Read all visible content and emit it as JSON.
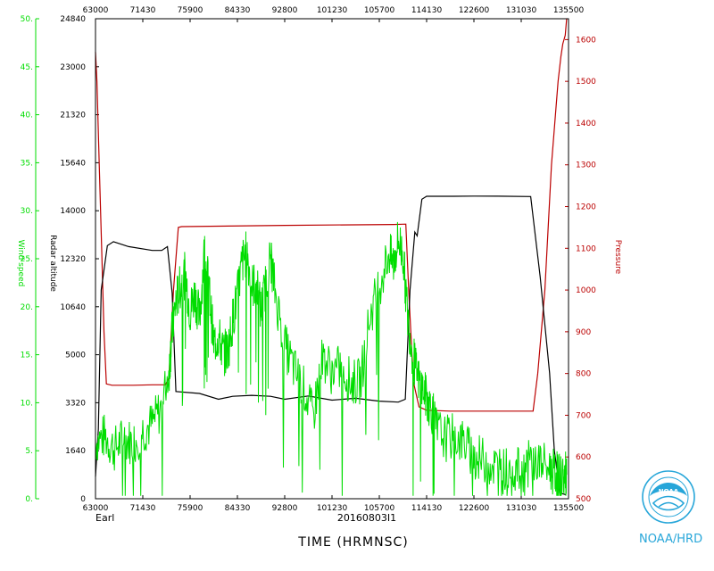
{
  "credit": "NOAA/HRD",
  "logo_text": "NOAA",
  "storm_label": "Earl",
  "flight_id": "20160803I1",
  "xlabel": "TIME (HRMNSC)",
  "colors": {
    "wind": "#00dd00",
    "pressure": "#bb0000",
    "height": "#000000",
    "frame": "#000000"
  },
  "chart_data": {
    "type": "line",
    "title": "",
    "xlabel": "TIME (HRMNSC)",
    "x_ticks_bottom": [
      "63000",
      "71430",
      "75900",
      "84330",
      "92800",
      "101230",
      "105700",
      "114130",
      "122600",
      "131030",
      "135500"
    ],
    "x_ticks_top": [
      "63000",
      "71430",
      "75900",
      "84330",
      "92800",
      "101230",
      "105700",
      "114130",
      "122600",
      "131030",
      "135500"
    ],
    "axes": {
      "wind": {
        "label": "Wind speed",
        "ylim": [
          0,
          50
        ],
        "ticks": [
          "0.",
          "5.",
          "10.",
          "15.",
          "20.",
          "25.",
          "30.",
          "35.",
          "40.",
          "45.",
          "50."
        ]
      },
      "height": {
        "label": "Radar altitude",
        "ylim": [
          0,
          24840
        ],
        "ticks": [
          "0",
          "1640",
          "3320",
          "5000",
          "10640",
          "12320",
          "14000",
          "15640",
          "21320",
          "23000",
          "24840"
        ]
      },
      "pressure": {
        "label": "Pressure",
        "ylim": [
          500,
          1650
        ],
        "ticks": [
          "500",
          "600",
          "700",
          "800",
          "900",
          "1000",
          "1100",
          "1200",
          "1300",
          "1400",
          "1500",
          "1600"
        ]
      }
    },
    "series": [
      {
        "name": "Pressure",
        "axis": "pressure",
        "points": [
          [
            0,
            1570
          ],
          [
            0.3,
            1500
          ],
          [
            0.8,
            1300
          ],
          [
            1.3,
            1100
          ],
          [
            1.8,
            900
          ],
          [
            2.3,
            775
          ],
          [
            3.5,
            772
          ],
          [
            8,
            772
          ],
          [
            12,
            773
          ],
          [
            14.8,
            773
          ],
          [
            15.5,
            790
          ],
          [
            16.5,
            1000
          ],
          [
            17.5,
            1150
          ],
          [
            18.2,
            1152
          ],
          [
            40,
            1155
          ],
          [
            63,
            1157
          ],
          [
            65.6,
            1158
          ],
          [
            66.2,
            1000
          ],
          [
            67.2,
            780
          ],
          [
            68.4,
            720
          ],
          [
            70,
            712
          ],
          [
            75,
            710
          ],
          [
            85,
            710
          ],
          [
            92.5,
            710
          ],
          [
            93.5,
            800
          ],
          [
            95,
            1000
          ],
          [
            96.4,
            1300
          ],
          [
            97.8,
            1500
          ],
          [
            98.4,
            1560
          ],
          [
            98.8,
            1590
          ],
          [
            99.3,
            1610
          ],
          [
            99.6,
            1650
          ]
        ]
      },
      {
        "name": "Radar altitude",
        "axis": "height",
        "points": [
          [
            0,
            1150
          ],
          [
            0.6,
            3600
          ],
          [
            1.2,
            10800
          ],
          [
            2.5,
            13100
          ],
          [
            3.8,
            13300
          ],
          [
            7,
            13050
          ],
          [
            12,
            12850
          ],
          [
            14,
            12850
          ],
          [
            15.2,
            13050
          ],
          [
            16.2,
            10640
          ],
          [
            17,
            5550
          ],
          [
            22,
            5450
          ],
          [
            26,
            5150
          ],
          [
            29,
            5300
          ],
          [
            33,
            5350
          ],
          [
            37,
            5300
          ],
          [
            40,
            5150
          ],
          [
            45,
            5320
          ],
          [
            50,
            5100
          ],
          [
            55,
            5200
          ],
          [
            60,
            5050
          ],
          [
            64,
            5000
          ],
          [
            65.5,
            5150
          ],
          [
            66.5,
            10800
          ],
          [
            67.5,
            13800
          ],
          [
            68,
            13600
          ],
          [
            69,
            15500
          ],
          [
            70,
            15650
          ],
          [
            75,
            15650
          ],
          [
            80,
            15660
          ],
          [
            85,
            15655
          ],
          [
            92,
            15640
          ],
          [
            94,
            11500
          ],
          [
            96,
            6500
          ],
          [
            97,
            2500
          ],
          [
            98.2,
            300
          ],
          [
            99.5,
            200
          ]
        ]
      },
      {
        "name": "Wind speed",
        "axis": "wind",
        "points": [
          [
            0,
            6
          ],
          [
            2,
            6.5
          ],
          [
            4,
            5.2
          ],
          [
            6,
            6.3
          ],
          [
            8,
            5.8
          ],
          [
            10,
            7.1
          ],
          [
            12,
            7.8
          ],
          [
            14,
            9.5
          ],
          [
            15.6,
            13.6
          ],
          [
            16.2,
            17.5
          ],
          [
            17,
            20.5
          ],
          [
            18,
            22.2
          ],
          [
            19,
            23.4
          ],
          [
            20,
            19.5
          ],
          [
            21,
            21.4
          ],
          [
            22,
            18.7
          ],
          [
            23,
            25.8
          ],
          [
            24,
            21.9
          ],
          [
            25,
            16.2
          ],
          [
            26,
            16.9
          ],
          [
            27,
            15.2
          ],
          [
            28,
            15.4
          ],
          [
            29,
            18.6
          ],
          [
            30,
            21.2
          ],
          [
            31,
            24.6
          ],
          [
            32,
            25.7
          ],
          [
            33,
            22.2
          ],
          [
            34,
            22.4
          ],
          [
            35,
            19.5
          ],
          [
            36,
            22.3
          ],
          [
            37,
            25.3
          ],
          [
            38,
            21.5
          ],
          [
            40,
            16
          ],
          [
            42,
            13.5
          ],
          [
            44,
            11.5
          ],
          [
            46,
            8.5
          ],
          [
            48,
            14.9
          ],
          [
            50,
            13.2
          ],
          [
            52,
            13.7
          ],
          [
            54,
            12.1
          ],
          [
            56,
            12.2
          ],
          [
            58,
            19
          ],
          [
            60,
            22.3
          ],
          [
            62,
            25.5
          ],
          [
            63,
            24.5
          ],
          [
            64,
            27
          ],
          [
            65,
            25.5
          ],
          [
            66,
            19
          ],
          [
            67,
            15.2
          ],
          [
            68,
            12.7
          ],
          [
            69,
            11.6
          ],
          [
            70,
            10.5
          ],
          [
            71,
            9.4
          ],
          [
            72,
            7.3
          ],
          [
            74,
            6.3
          ],
          [
            76,
            6.5
          ],
          [
            78,
            5.8
          ],
          [
            80,
            4.4
          ],
          [
            82,
            4
          ],
          [
            84,
            3.5
          ],
          [
            86,
            2.9
          ],
          [
            88,
            3.2
          ],
          [
            90,
            2.8
          ],
          [
            92,
            3.9
          ],
          [
            94,
            3.7
          ],
          [
            96,
            3.1
          ],
          [
            97,
            2.7
          ],
          [
            98,
            2.3
          ],
          [
            99,
            2.3
          ],
          [
            99.6,
            2.5
          ]
        ]
      }
    ],
    "grid": false,
    "legend": "none"
  }
}
